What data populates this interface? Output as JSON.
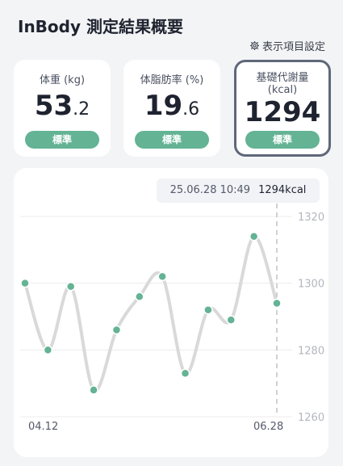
{
  "header": {
    "title": "InBody 測定結果概要",
    "settings_label": "表示項目設定",
    "settings_icon": "gear-icon"
  },
  "cards": [
    {
      "label": "体重 (kg)",
      "value_int": "53",
      "value_dec": ".2",
      "status": "標準"
    },
    {
      "label": "体脂肪率 (%)",
      "value_int": "19",
      "value_dec": ".6",
      "status": "標準"
    },
    {
      "label_line1": "基礎代謝量",
      "label_line2": "(kcal)",
      "value_int": "1294",
      "value_dec": "",
      "status": "標準",
      "selected": true
    }
  ],
  "colors": {
    "accent": "#63b394",
    "selected_border": "#5f6779",
    "line": "#d9d9d9"
  },
  "tooltip": {
    "datetime": "25.06.28 10:49",
    "value": "1294kcal"
  },
  "chart_data": {
    "type": "line",
    "title": "",
    "xlabel": "",
    "ylabel": "",
    "x_tick_labels": [
      "04.12",
      "06.28"
    ],
    "y_ticks": [
      1260,
      1280,
      1300,
      1320
    ],
    "ylim": [
      1260,
      1320
    ],
    "grid": true,
    "series": [
      {
        "values": [
          1300,
          1280,
          1299,
          1268,
          1286,
          1296,
          1302,
          1273,
          1292,
          1289,
          1314,
          1294
        ]
      }
    ],
    "highlight_index": 11
  }
}
